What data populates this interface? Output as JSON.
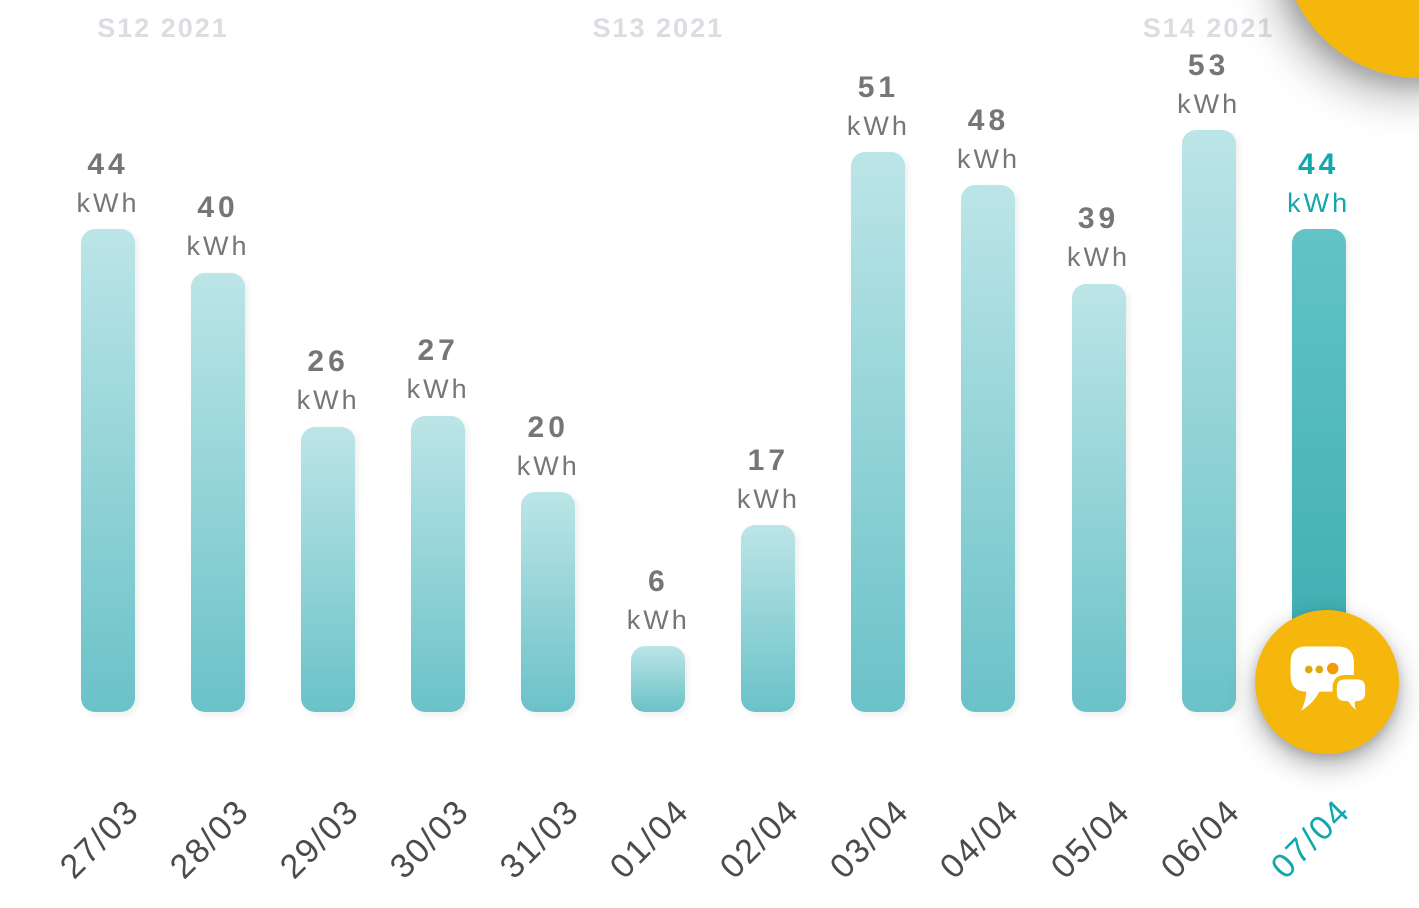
{
  "chart_data": {
    "type": "bar",
    "unit": "kWh",
    "categories": [
      "27/03",
      "28/03",
      "29/03",
      "30/03",
      "31/03",
      "01/04",
      "02/04",
      "03/04",
      "04/04",
      "05/04",
      "06/04",
      "07/04"
    ],
    "values": [
      44,
      40,
      26,
      27,
      20,
      6,
      17,
      51,
      48,
      39,
      53,
      44
    ],
    "highlight_index": 11,
    "week_groups": [
      {
        "label": "S12 2021",
        "start": 0,
        "end": 1
      },
      {
        "label": "S13 2021",
        "start": 2,
        "end": 8
      },
      {
        "label": "S14 2021",
        "start": 9,
        "end": 11
      }
    ],
    "ylim": [
      0,
      53
    ],
    "grid": false,
    "legend": false,
    "value_labels_shown": true
  },
  "colors": {
    "bar_top": "#bce5e7",
    "bar_bottom": "#6ac2c8",
    "bar_hl_top": "#63c3c6",
    "bar_hl_bottom": "#3aacb0",
    "value_text": "#767676",
    "date_text": "#4b4b4b",
    "highlight_text": "#12a7ab",
    "week_text": "#dcdde2",
    "accent_yellow": "#f6b70c",
    "dot_small": "#e2a90f",
    "dot_large": "#f59b0b",
    "bubble": "#ffffff"
  },
  "fab": {
    "icon": "chat-bubbles-icon"
  }
}
